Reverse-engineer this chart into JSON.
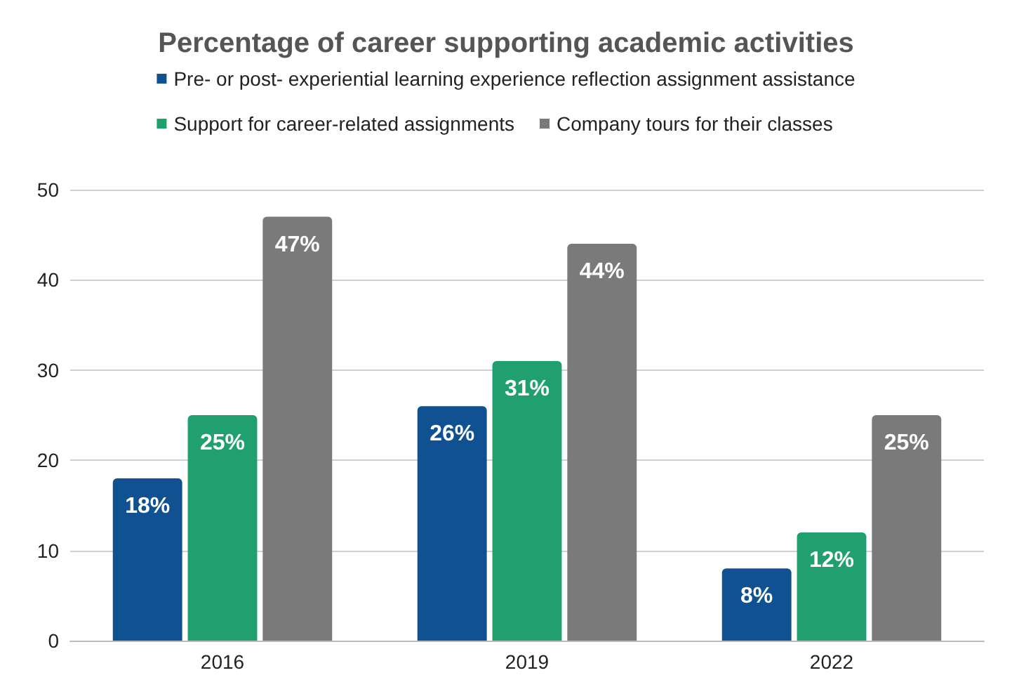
{
  "chart_data": {
    "type": "bar",
    "title": "Percentage of career supporting academic activities",
    "categories": [
      "2016",
      "2019",
      "2022"
    ],
    "series": [
      {
        "name": "Pre- or post- experiential learning experience reflection assignment assistance",
        "color": "#0f5191",
        "values": [
          18,
          26,
          8
        ],
        "value_labels": [
          "18%",
          "26%",
          "8%"
        ]
      },
      {
        "name": "Support for career-related assignments",
        "color": "#1fa06e",
        "values": [
          25,
          31,
          12
        ],
        "value_labels": [
          "25%",
          "31%",
          "12%"
        ]
      },
      {
        "name": "Company tours for their classes",
        "color": "#7a7a7a",
        "values": [
          47,
          44,
          25
        ],
        "value_labels": [
          "47%",
          "44%",
          "25%"
        ]
      }
    ],
    "ylim": [
      0,
      50
    ],
    "yticks": [
      0,
      10,
      20,
      30,
      40,
      50
    ],
    "grid": "y",
    "legend": "top"
  }
}
